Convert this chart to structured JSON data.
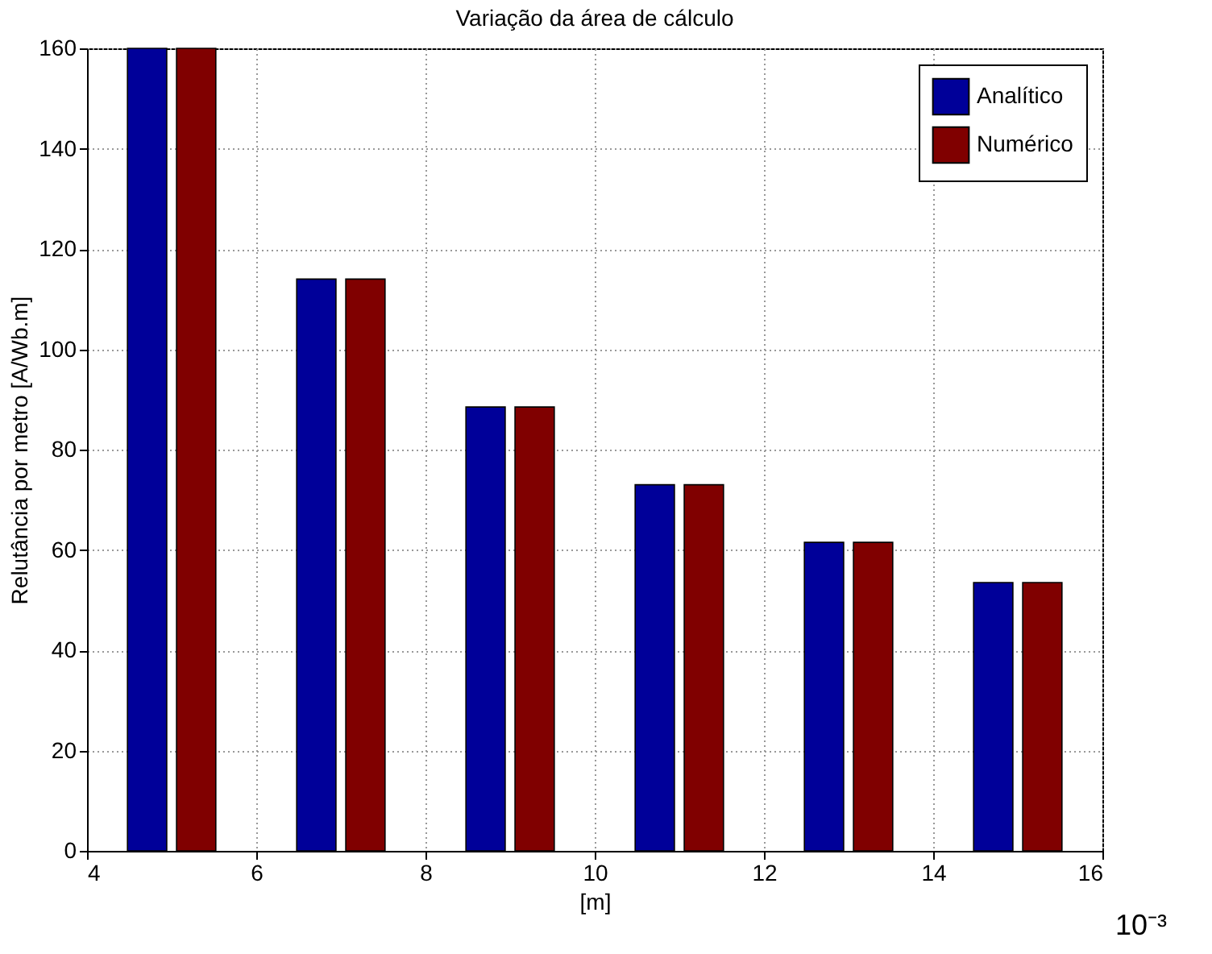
{
  "chart_data": {
    "type": "bar",
    "title": "Variação da área de cálculo",
    "xlabel": "[m]",
    "ylabel": "Relutância por metro [A/Wb.m]",
    "x": [
      5,
      7,
      9,
      11,
      13,
      15
    ],
    "series": [
      {
        "name": "Analítico",
        "color": "#000099",
        "values": [
          160,
          114,
          88.5,
          73,
          61.5,
          53.5
        ]
      },
      {
        "name": "Numérico",
        "color": "#800000",
        "values": [
          160,
          114,
          88.5,
          73,
          61.5,
          53.5
        ]
      }
    ],
    "xlim": [
      4,
      16
    ],
    "xticks": [
      4,
      6,
      8,
      10,
      12,
      14,
      16
    ],
    "ylim": [
      0,
      160
    ],
    "yticks": [
      0,
      20,
      40,
      60,
      80,
      100,
      120,
      140,
      160
    ],
    "grid": true,
    "legend": "top right",
    "annotations": [
      "10⁻³"
    ]
  }
}
